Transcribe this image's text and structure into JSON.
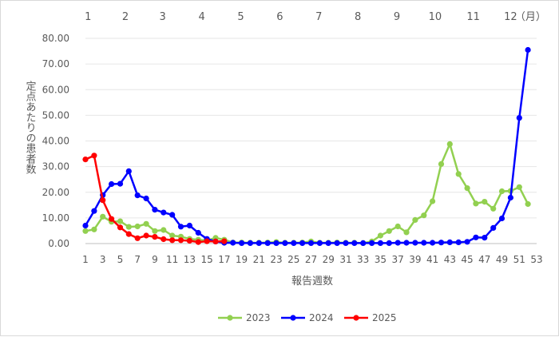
{
  "chart_data": {
    "type": "line",
    "title": "",
    "xlabel": "報告週数",
    "ylabel": "定点あたりの患者数",
    "ylim": [
      0,
      80
    ],
    "yticks": [
      "0.00",
      "10.00",
      "20.00",
      "30.00",
      "40.00",
      "50.00",
      "60.00",
      "70.00",
      "80.00"
    ],
    "xlim": [
      1,
      53
    ],
    "xticks": [
      1,
      3,
      5,
      7,
      9,
      11,
      13,
      15,
      17,
      19,
      21,
      23,
      25,
      27,
      29,
      31,
      33,
      35,
      37,
      39,
      41,
      43,
      45,
      47,
      49,
      51,
      53
    ],
    "month_labels": [
      {
        "label": "1",
        "week": 1.3
      },
      {
        "label": "2",
        "week": 5.6
      },
      {
        "label": "3",
        "week": 9.9
      },
      {
        "label": "4",
        "week": 14.4
      },
      {
        "label": "5",
        "week": 18.9
      },
      {
        "label": "6",
        "week": 23.4
      },
      {
        "label": "7",
        "week": 27.9
      },
      {
        "label": "8",
        "week": 32.4
      },
      {
        "label": "9",
        "week": 36.9
      },
      {
        "label": "10",
        "week": 41.3
      },
      {
        "label": "11",
        "week": 45.7
      },
      {
        "label": "12",
        "week": 50.0
      },
      {
        "label": "（月）",
        "week": 52.3
      }
    ],
    "series": [
      {
        "name": "2023",
        "color": "#92d050",
        "values": [
          4.9,
          5.5,
          10.5,
          8.5,
          8.7,
          6.5,
          6.7,
          7.7,
          4.9,
          5.3,
          3.1,
          2.7,
          1.8,
          1.5,
          1.2,
          2.2,
          1.5,
          0.4,
          0.4,
          0.3,
          0.3,
          0.4,
          0.6,
          0.3,
          0.3,
          0.4,
          0.8,
          0.3,
          0.3,
          0.4,
          0.3,
          0.3,
          0.2,
          0.8,
          3.1,
          4.9,
          6.7,
          4.4,
          9.2,
          11.0,
          16.5,
          31.0,
          38.8,
          27.1,
          21.6,
          15.6,
          16.3,
          13.6,
          20.4,
          20.5,
          22.0,
          15.4
        ]
      },
      {
        "name": "2024",
        "color": "#0000ff",
        "values": [
          7.0,
          12.7,
          18.9,
          23.2,
          23.3,
          28.2,
          18.8,
          17.6,
          13.2,
          12.1,
          11.2,
          6.6,
          7.0,
          4.2,
          1.8,
          0.8,
          0.3,
          0.3,
          0.2,
          0.2,
          0.2,
          0.2,
          0.2,
          0.2,
          0.2,
          0.2,
          0.2,
          0.2,
          0.2,
          0.2,
          0.2,
          0.2,
          0.2,
          0.2,
          0.2,
          0.2,
          0.3,
          0.3,
          0.3,
          0.3,
          0.3,
          0.4,
          0.5,
          0.5,
          0.7,
          2.4,
          2.3,
          6.1,
          9.8,
          17.9,
          49.0,
          75.5
        ]
      },
      {
        "name": "2025",
        "color": "#ff0000",
        "values": [
          32.8,
          34.3,
          16.9,
          9.6,
          6.3,
          3.7,
          2.1,
          3.1,
          2.6,
          1.7,
          1.3,
          1.3,
          1.1,
          0.6,
          0.9,
          0.8,
          0.9
        ]
      }
    ],
    "legend_position": "bottom"
  }
}
